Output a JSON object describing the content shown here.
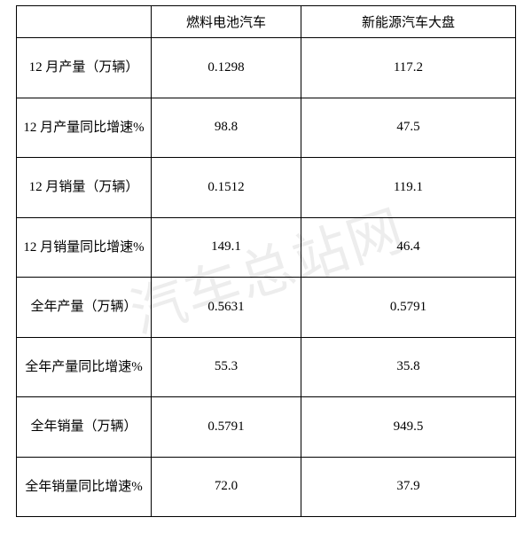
{
  "watermark_text": "汽车总站网",
  "table": {
    "columns": [
      "",
      "燃料电池汽车",
      "新能源汽车大盘"
    ],
    "rows": [
      {
        "label": "12 月产量（万辆）",
        "col1": "0.1298",
        "col2": "117.2"
      },
      {
        "label": "12 月产量同比增速%",
        "col1": "98.8",
        "col2": "47.5"
      },
      {
        "label": "12 月销量（万辆）",
        "col1": "0.1512",
        "col2": "119.1"
      },
      {
        "label": "12 月销量同比增速%",
        "col1": "149.1",
        "col2": "46.4"
      },
      {
        "label": "全年产量（万辆）",
        "col1": "0.5631",
        "col2": "0.5791"
      },
      {
        "label": "全年产量同比增速%",
        "col1": "55.3",
        "col2": "35.8"
      },
      {
        "label": "全年销量（万辆）",
        "col1": "0.5791",
        "col2": "949.5"
      },
      {
        "label": "全年销量同比增速%",
        "col1": "72.0",
        "col2": "37.9"
      }
    ],
    "border_color": "#000000",
    "background_color": "#ffffff",
    "text_color": "#000000",
    "font_size": 15,
    "font_family": "SimSun",
    "watermark_color": "rgba(0,0,0,0.07)",
    "watermark_fontsize": 62,
    "watermark_rotation_deg": -18
  }
}
